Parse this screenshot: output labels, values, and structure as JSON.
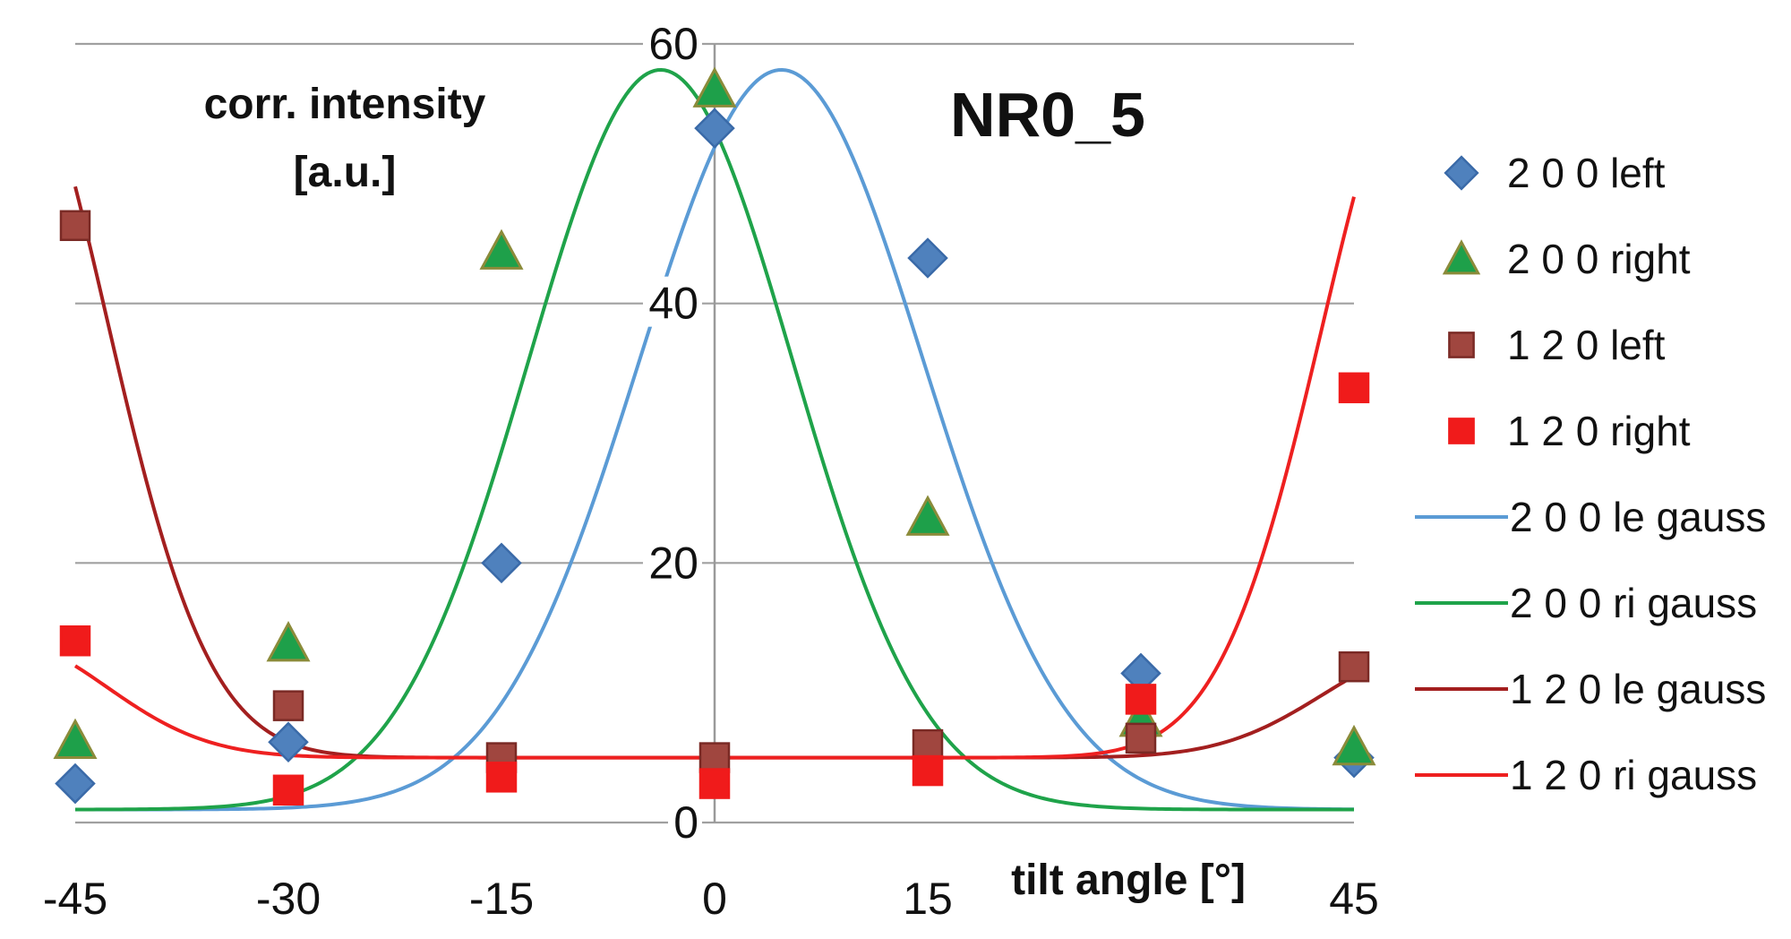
{
  "chart_data": {
    "type": "scatter",
    "title": "NR0_5",
    "ylabel_lines": [
      "corr. intensity",
      "[a.u.]"
    ],
    "xlabel": "tilt angle [°]",
    "xlim": [
      -45,
      45
    ],
    "ylim": [
      0,
      60
    ],
    "xticks": [
      -45,
      -30,
      -15,
      0,
      15,
      45
    ],
    "xtick_labels": [
      "-45",
      "-30",
      "-15",
      "0",
      "15",
      "45"
    ],
    "yticks": [
      0,
      20,
      40,
      60
    ],
    "ytick_labels": [
      "0",
      "20",
      "40",
      "60"
    ],
    "grid": "horizontal",
    "legend_position": "right",
    "series": [
      {
        "name": "2 0 0 left",
        "kind": "points",
        "marker": "diamond",
        "color": "#4f81bd",
        "stroke": "#3a6aa8",
        "x": [
          -45,
          -30,
          -15,
          0,
          15,
          30,
          45
        ],
        "y": [
          3,
          6.2,
          20,
          53.5,
          43.5,
          11.5,
          5
        ]
      },
      {
        "name": "2 0 0 right",
        "kind": "points",
        "marker": "triangle",
        "color": "#1ea04a",
        "stroke": "#8b8b3a",
        "x": [
          -45,
          -30,
          -15,
          0,
          15,
          30,
          45
        ],
        "y": [
          6.3,
          13.8,
          44,
          56.5,
          23.5,
          8,
          5.8
        ]
      },
      {
        "name": "1 2 0 left",
        "kind": "points",
        "marker": "square",
        "color": "#a0463f",
        "stroke": "#7a2a25",
        "x": [
          -45,
          -30,
          -15,
          0,
          15,
          30,
          45
        ],
        "y": [
          46,
          9,
          5,
          5,
          6,
          6.5,
          12
        ]
      },
      {
        "name": "1 2 0 right",
        "kind": "points",
        "marker": "square",
        "color": "#f01b1b",
        "stroke": "#f01b1b",
        "x": [
          -45,
          -30,
          -15,
          0,
          15,
          30,
          45
        ],
        "y": [
          14,
          2.5,
          3.5,
          3,
          4,
          9.5,
          33.5
        ]
      },
      {
        "name": "2 0 0 le gauss",
        "kind": "curve",
        "color": "#5b9bd5",
        "baseline": 1,
        "amplitude": 57,
        "center": 4.7,
        "sigma": 10,
        "x_range": [
          -45,
          45
        ]
      },
      {
        "name": "2 0 0 ri gauss",
        "kind": "curve",
        "color": "#1fa34a",
        "baseline": 1,
        "amplitude": 57,
        "center": -3.8,
        "sigma": 9.3,
        "x_range": [
          -45,
          45
        ]
      },
      {
        "name": "1 2 0 le gauss",
        "kind": "curve",
        "color": "#a31f1f",
        "type_detail": "baseline + gaussian peaks centered at x = -50 and x = +50",
        "baseline": 5,
        "amp_left": 56,
        "amp_right": 8,
        "sigma": 7.2,
        "x_range": [
          -45,
          45
        ]
      },
      {
        "name": "1 2 0 ri gauss",
        "kind": "curve",
        "color": "#ee2020",
        "type_detail": "baseline + gaussian peaks centered at x = -50 and x = +50",
        "baseline": 5,
        "amp_left": 9,
        "amp_right": 55,
        "sigma": 7.2,
        "x_range": [
          -45,
          45
        ]
      }
    ]
  }
}
